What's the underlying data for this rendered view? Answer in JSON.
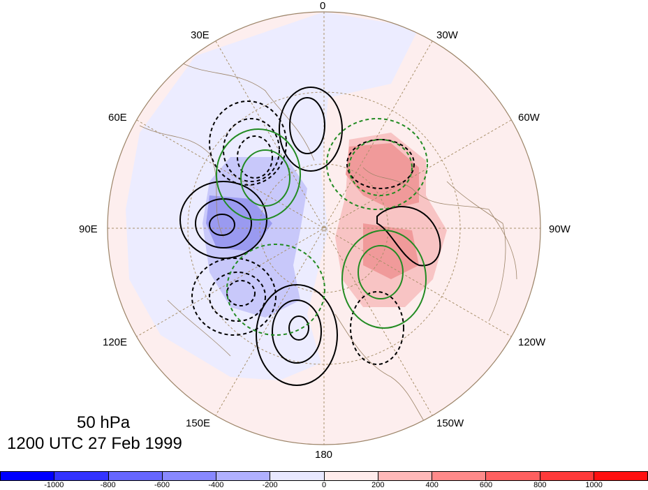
{
  "caption": {
    "level": "50 hPa",
    "time": "1200 UTC 27 Feb 1999"
  },
  "longitude_labels": [
    "0",
    "30W",
    "60W",
    "90W",
    "120W",
    "150W",
    "180",
    "150E",
    "120E",
    "90E",
    "60E",
    "30E"
  ],
  "colorbar": {
    "colors": [
      "#0000ff",
      "#3333ff",
      "#6666ff",
      "#8888ff",
      "#b0b0ff",
      "#e8e8ff",
      "#ffecec",
      "#ffb8b8",
      "#ff8a8a",
      "#ff6060",
      "#ff3a3a",
      "#ff1010"
    ],
    "tick_labels": [
      "-1000",
      "-800",
      "-600",
      "-400",
      "-200",
      "0",
      "200",
      "400",
      "600",
      "800",
      "1000"
    ]
  },
  "map": {
    "projection": "north polar stereographic",
    "contour_colors": {
      "positive": "#000000",
      "negative_dashed": "#000000",
      "green": "#228b22"
    },
    "shading_colors": {
      "negative": "#8080f0",
      "positive": "#f07070"
    }
  }
}
